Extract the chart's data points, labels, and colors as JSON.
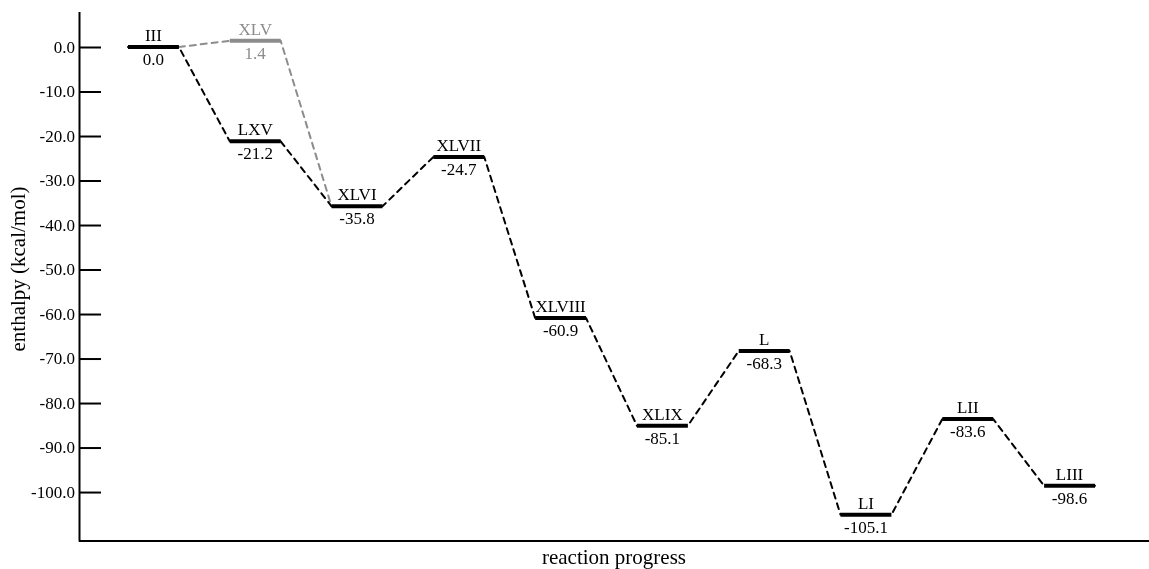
{
  "chart_data": {
    "type": "line",
    "xlabel": "reaction progress",
    "ylabel": "enthalpy (kcal/mol)",
    "categories": [
      null,
      null,
      null,
      null,
      null,
      null,
      null,
      null,
      null,
      null,
      null,
      null,
      null,
      null,
      null,
      null,
      null,
      null,
      null,
      null
    ],
    "series": [
      {
        "color": "#000000",
        "values": [
          0,
          0,
          -21.2,
          -21.2,
          -35.8,
          -35.8,
          -24.7,
          -24.7,
          -60.9,
          -60.9,
          -85.1,
          -85.1,
          -68.3,
          -68.3,
          -105.1,
          -105.1,
          -83.6,
          -83.6,
          -98.6,
          -98.6
        ],
        "value_labels": [
          "0.0",
          null,
          "-21.2",
          null,
          "-35.8",
          null,
          "-24.7",
          null,
          "-60.9",
          null,
          "-85.1",
          null,
          "-68.3",
          null,
          "-105.1",
          null,
          "-83.6",
          null,
          "-98.6",
          null
        ]
      },
      {
        "color": "#8c8c8c",
        "values": [
          null,
          0,
          1.4,
          1.4,
          -35.8,
          null,
          null,
          null,
          null,
          null,
          null,
          null,
          null,
          null,
          null,
          null,
          null,
          null,
          null,
          null
        ],
        "value_labels": [
          null,
          null,
          "1.4",
          null,
          null,
          null,
          null,
          null,
          null,
          null,
          null,
          null,
          null,
          null,
          null,
          null,
          null,
          null,
          null,
          null
        ]
      }
    ],
    "annotations": [
      {
        "text": "III",
        "y": 0
      },
      {
        "text": "XLV",
        "y": 1.4
      },
      {
        "text": "LXV",
        "y": -21.2
      },
      {
        "text": "XLVI",
        "y": -35.8
      },
      {
        "text": "XLVII",
        "y": -24.7
      },
      {
        "text": "XLVIII",
        "y": -60.9
      },
      {
        "text": "XLIX",
        "y": -85.1
      },
      {
        "text": "L",
        "y": -68.3
      },
      {
        "text": "LI",
        "y": -105.1
      },
      {
        "text": "LII",
        "y": -83.6
      },
      {
        "text": "LIII",
        "y": -98.6
      }
    ],
    "ylim": [
      -111,
      8
    ],
    "yticks": [
      {
        "value": 0,
        "label": "0.0"
      },
      {
        "value": -10,
        "label": "-10.0"
      },
      {
        "value": -20,
        "label": "-20.0"
      },
      {
        "value": -30,
        "label": "-30.0"
      },
      {
        "value": -40,
        "label": "-40.0"
      },
      {
        "value": -50,
        "label": "-50.0"
      },
      {
        "value": -60,
        "label": "-60.0"
      },
      {
        "value": -70,
        "label": "-70.0"
      },
      {
        "value": -80,
        "label": "-80.0"
      },
      {
        "value": -90,
        "label": "-90.0"
      },
      {
        "value": -100,
        "label": "-100.0"
      }
    ],
    "line_style": "dashed",
    "tick_labels": "y"
  }
}
